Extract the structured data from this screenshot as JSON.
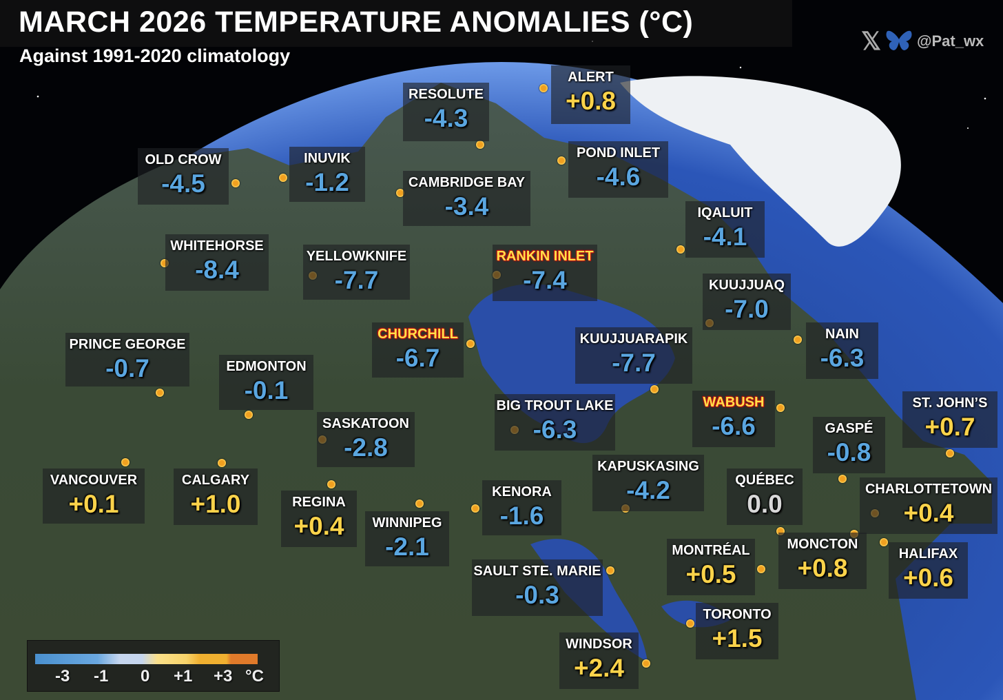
{
  "title": "MARCH 2026 TEMPERATURE ANOMALIES (°C)",
  "subtitle": "Against 1991-2020 climatology",
  "credit": {
    "handle": "@Pat_wx",
    "icons": [
      "x-logo-icon",
      "bluesky-butterfly-icon"
    ]
  },
  "colors": {
    "negative": "#5aa6e0",
    "zero": "#d8d8d8",
    "positive": "#fbd34a",
    "highlight_name": "#ffe04a",
    "highlight_outline": "#c41010"
  },
  "stations": [
    {
      "name": "ALERT",
      "value": "+0.8"
    },
    {
      "name": "RESOLUTE",
      "value": "-4.3"
    },
    {
      "name": "OLD CROW",
      "value": "-4.5"
    },
    {
      "name": "INUVIK",
      "value": "-1.2"
    },
    {
      "name": "CAMBRIDGE BAY",
      "value": "-3.4"
    },
    {
      "name": "POND INLET",
      "value": "-4.6"
    },
    {
      "name": "IQALUIT",
      "value": "-4.1"
    },
    {
      "name": "WHITEHORSE",
      "value": "-8.4"
    },
    {
      "name": "YELLOWKNIFE",
      "value": "-7.7"
    },
    {
      "name": "RANKIN INLET",
      "value": "-7.4",
      "highlight": true
    },
    {
      "name": "KUUJJUAQ",
      "value": "-7.0"
    },
    {
      "name": "NAIN",
      "value": "-6.3"
    },
    {
      "name": "CHURCHILL",
      "value": "-6.7",
      "highlight": true
    },
    {
      "name": "KUUJJUARAPIK",
      "value": "-7.7"
    },
    {
      "name": "PRINCE GEORGE",
      "value": "-0.7"
    },
    {
      "name": "EDMONTON",
      "value": "-0.1"
    },
    {
      "name": "WABUSH",
      "value": "-6.6",
      "highlight": true
    },
    {
      "name": "ST. JOHN’S",
      "value": "+0.7"
    },
    {
      "name": "BIG TROUT LAKE",
      "value": "-6.3"
    },
    {
      "name": "SASKATOON",
      "value": "-2.8"
    },
    {
      "name": "GASPÉ",
      "value": "-0.8"
    },
    {
      "name": "KAPUSKASING",
      "value": "-4.2"
    },
    {
      "name": "QUÉBEC",
      "value": "0.0"
    },
    {
      "name": "CHARLOTTETOWN",
      "value": "+0.4"
    },
    {
      "name": "VANCOUVER",
      "value": "+0.1"
    },
    {
      "name": "CALGARY",
      "value": "+1.0"
    },
    {
      "name": "REGINA",
      "value": "+0.4"
    },
    {
      "name": "WINNIPEG",
      "value": "-2.1"
    },
    {
      "name": "KENORA",
      "value": "-1.6"
    },
    {
      "name": "MONTRÉAL",
      "value": "+0.5"
    },
    {
      "name": "MONCTON",
      "value": "+0.8"
    },
    {
      "name": "HALIFAX",
      "value": "+0.6"
    },
    {
      "name": "SAULT STE. MARIE",
      "value": "-0.3"
    },
    {
      "name": "TORONTO",
      "value": "+1.5"
    },
    {
      "name": "WINDSOR",
      "value": "+2.4"
    }
  ],
  "legend": {
    "ticks": [
      "-3",
      "-1",
      "0",
      "+1",
      "+3"
    ],
    "unit": "°C",
    "colors": [
      "#4a90cf",
      "#c6d6ee",
      "#fbe08a",
      "#f0b030",
      "#e07a2a"
    ]
  }
}
